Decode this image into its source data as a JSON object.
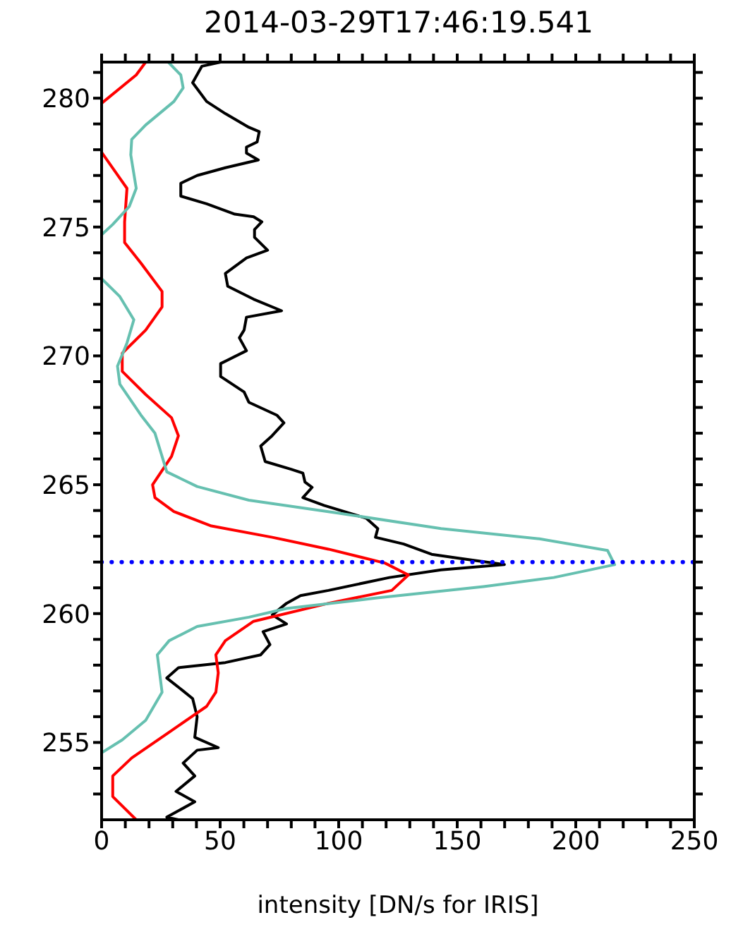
{
  "chart_data": {
    "type": "line",
    "title": "2014-03-29T17:46:19.541",
    "xlabel": "intensity [DN/s for IRIS]",
    "xlim": [
      0,
      250
    ],
    "ylim": [
      252,
      281.4
    ],
    "xticks": [
      0,
      {
        "value": 10,
        "label": null
      },
      {
        "value": 20,
        "label": null
      },
      {
        "value": 30,
        "label": null
      },
      {
        "value": 40,
        "label": null
      },
      50,
      {
        "value": 60,
        "label": null
      },
      {
        "value": 70,
        "label": null
      },
      {
        "value": 80,
        "label": null
      },
      {
        "value": 90,
        "label": null
      },
      100,
      {
        "value": 110,
        "label": null
      },
      {
        "value": 120,
        "label": null
      },
      {
        "value": 130,
        "label": null
      },
      {
        "value": 140,
        "label": null
      },
      150,
      {
        "value": 160,
        "label": null
      },
      {
        "value": 170,
        "label": null
      },
      {
        "value": 180,
        "label": null
      },
      {
        "value": 190,
        "label": null
      },
      200,
      {
        "value": 210,
        "label": null
      },
      {
        "value": 220,
        "label": null
      },
      {
        "value": 230,
        "label": null
      },
      {
        "value": 240,
        "label": null
      },
      250
    ],
    "yticks": [
      {
        "value": 253,
        "label": null
      },
      {
        "value": 254,
        "label": null
      },
      255,
      {
        "value": 256,
        "label": null
      },
      {
        "value": 257,
        "label": null
      },
      {
        "value": 258,
        "label": null
      },
      {
        "value": 259,
        "label": null
      },
      260,
      {
        "value": 261,
        "label": null
      },
      {
        "value": 262,
        "label": null
      },
      {
        "value": 263,
        "label": null
      },
      {
        "value": 264,
        "label": null
      },
      265,
      {
        "value": 266,
        "label": null
      },
      {
        "value": 267,
        "label": null
      },
      {
        "value": 268,
        "label": null
      },
      {
        "value": 269,
        "label": null
      },
      270,
      {
        "value": 271,
        "label": null
      },
      {
        "value": 272,
        "label": null
      },
      {
        "value": 273,
        "label": null
      },
      {
        "value": 274,
        "label": null
      },
      275,
      {
        "value": 276,
        "label": null
      },
      {
        "value": 277,
        "label": null
      },
      {
        "value": 278,
        "label": null
      },
      {
        "value": 279,
        "label": null
      },
      280,
      {
        "value": 281,
        "label": null
      }
    ],
    "marker": "none",
    "line_style": "solid",
    "ref_lines": [
      {
        "axis": "y",
        "value": 262,
        "color": "#0000ff",
        "line_style": "dotted"
      }
    ],
    "series": [
      {
        "color": "#000000",
        "x": [
          50.2,
          42.3,
          38.4,
          44.3,
          52.2,
          62.1,
          66.5,
          65.6,
          61.1,
          61.1,
          66.1,
          52.2,
          40.3,
          33.4,
          33.4,
          44.3,
          56.2,
          64.1,
          67.6,
          64.5,
          64.5,
          70,
          61.1,
          52.2,
          53.2,
          64.1,
          75.9,
          61.1,
          60.1,
          58.1,
          61.1,
          50.2,
          50.2,
          60.1,
          62.1,
          73.9,
          76.9,
          71.9,
          67.1,
          69,
          79.9,
          84.9,
          85.8,
          88.8,
          84.9,
          93.8,
          111.6,
          116.5,
          115.5,
          127.4,
          139.2,
          151.1,
          169.9,
          143.2,
          121.4,
          95.7,
          83.9,
          78,
          72,
          78,
          68.1,
          71,
          67.1,
          52.2,
          32.4,
          27.5,
          34.4,
          38.4,
          40.3,
          39.3,
          49.2,
          40.3,
          34.4,
          39.3,
          31.4,
          39.3,
          27.5,
          32.4
        ],
        "values": [
          281.4,
          281.24,
          280.6,
          279.87,
          279.4,
          278.87,
          278.7,
          278.3,
          278.1,
          277.87,
          277.6,
          277.3,
          277,
          276.7,
          276.2,
          275.9,
          275.5,
          275.4,
          275.2,
          274.9,
          274.6,
          274.1,
          273.8,
          273.2,
          272.7,
          272.2,
          271.75,
          271.5,
          271,
          270.7,
          270.2,
          269.7,
          269.2,
          268.6,
          268.2,
          267.7,
          267.4,
          266.9,
          266.5,
          265.9,
          265.6,
          265.45,
          265.1,
          264.9,
          264.5,
          264.2,
          263.7,
          263.3,
          262.96,
          262.7,
          262.3,
          262.14,
          261.9,
          261.7,
          261.4,
          260.9,
          260.7,
          260.4,
          259.95,
          259.6,
          259.3,
          258.8,
          258.4,
          258.1,
          257.9,
          257.5,
          257,
          256.7,
          256,
          255.2,
          254.8,
          254.7,
          254.2,
          253.7,
          253.1,
          252.7,
          252.1,
          252
        ]
      },
      {
        "color": "#ff0000",
        "x": [
          18.6,
          14.6,
          0,
          null,
          0,
          10.7,
          9.7,
          9.7,
          16.6,
          25.5,
          25.5,
          18.6,
          8.7,
          8.7,
          18.6,
          29.5,
          32.4,
          29.5,
          21.5,
          22.5,
          30.5,
          46.3,
          72,
          95.7,
          119.5,
          129.4,
          122.4,
          95.7,
          64.1,
          52.2,
          48.2,
          49.2,
          48.2,
          44.3,
          28.5,
          12.7,
          4.7,
          4.7,
          14.6
        ],
        "values": [
          281.4,
          280.9,
          279.8,
          null,
          277.9,
          276.5,
          275.2,
          274.4,
          273.6,
          272.5,
          271.9,
          271,
          270.1,
          269.4,
          268.5,
          267.6,
          266.9,
          266.1,
          265,
          264.5,
          263.96,
          263.4,
          262.96,
          262.5,
          261.96,
          261.5,
          260.9,
          260.4,
          259.7,
          258.95,
          258.4,
          257.7,
          256.95,
          256.4,
          255.4,
          254.4,
          253.7,
          252.9,
          252
        ]
      },
      {
        "color": "#66c0b0",
        "x": [
          28.1,
          33.4,
          34.4,
          30.5,
          18.6,
          12.7,
          12.3,
          14.6,
          11.7,
          4.7,
          0,
          null,
          0,
          7.7,
          13.6,
          10.7,
          6.7,
          7.7,
          16.6,
          22.5,
          25.5,
          27.5,
          40.3,
          62.1,
          99.7,
          143.2,
          184.7,
          213.4,
          216.4,
          190.7,
          161.1,
          115.5,
          78,
          62.1,
          40.3,
          28.5,
          23.5,
          25.5,
          18.6,
          8.7,
          0
        ],
        "values": [
          281.4,
          280.9,
          280.4,
          279.87,
          278.96,
          278.4,
          277.8,
          276.5,
          275.8,
          275.1,
          274.7,
          null,
          273,
          272.3,
          271.4,
          270.5,
          269.6,
          268.9,
          267.7,
          267,
          266.1,
          265.5,
          264.93,
          264.4,
          263.9,
          263.3,
          262.9,
          262.45,
          261.9,
          261.4,
          261.05,
          260.6,
          260.2,
          259.86,
          259.5,
          258.95,
          258.4,
          256.95,
          255.86,
          255.1,
          254.6
        ]
      }
    ]
  }
}
